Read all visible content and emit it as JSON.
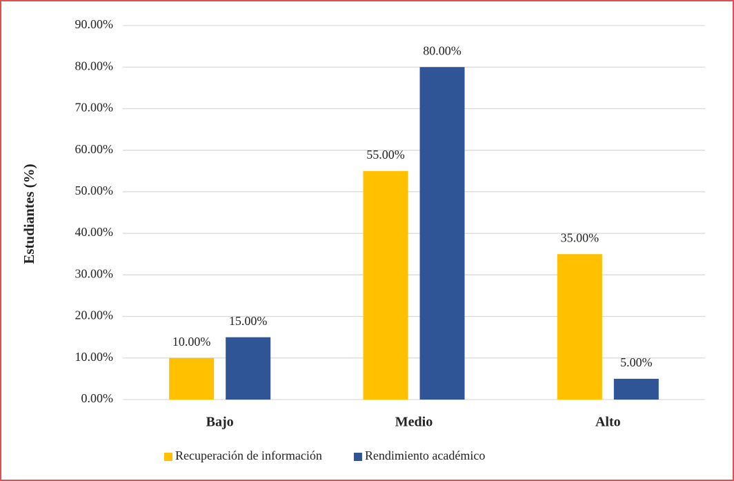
{
  "chart_data": {
    "type": "bar",
    "y_label": "Estudiantes (%)",
    "categories": [
      "Bajo",
      "Medio",
      "Alto"
    ],
    "series": [
      {
        "name": "Recuperación de información",
        "color": "#FFC000",
        "values": [
          10,
          55,
          35
        ],
        "value_labels": [
          "10.00%",
          "55.00%",
          "35.00%"
        ]
      },
      {
        "name": "Rendimiento académico",
        "color": "#2F5597",
        "values": [
          15,
          80,
          5
        ],
        "value_labels": [
          "15.00%",
          "80.00%",
          "5.00%"
        ]
      }
    ],
    "ylim": [
      0,
      90
    ],
    "yticks": [
      {
        "value": 0,
        "label": "0.00%"
      },
      {
        "value": 10,
        "label": "10.00%"
      },
      {
        "value": 20,
        "label": "20.00%"
      },
      {
        "value": 30,
        "label": "30.00%"
      },
      {
        "value": 40,
        "label": "40.00%"
      },
      {
        "value": 50,
        "label": "50.00%"
      },
      {
        "value": 60,
        "label": "60.00%"
      },
      {
        "value": 70,
        "label": "70.00%"
      },
      {
        "value": 80,
        "label": "80.00%"
      },
      {
        "value": 90,
        "label": "90.00%"
      }
    ],
    "grid": true,
    "legend": "bottom"
  }
}
